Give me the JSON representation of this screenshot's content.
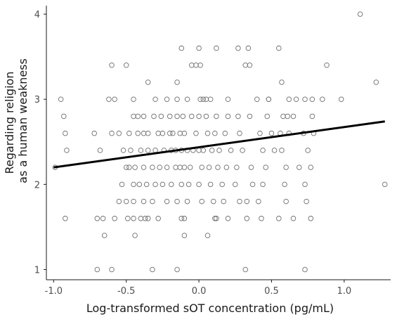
{
  "chart_data": {
    "type": "scatter",
    "xlabel": "Log-transformed sOT concentration (pg/mL)",
    "ylabel_lines": [
      "Regarding religion",
      "as a human weakness"
    ],
    "xlim": [
      -1.05,
      1.32
    ],
    "ylim": [
      0.88,
      4.1
    ],
    "x_ticks": [
      -1.0,
      -0.5,
      0.0,
      0.5,
      1.0
    ],
    "x_tick_labels": [
      "-1.0",
      "-0.5",
      "0.0",
      "0.5",
      "1.0"
    ],
    "y_ticks": [
      1,
      2,
      3,
      4
    ],
    "y_tick_labels": [
      "1",
      "2",
      "3",
      "4"
    ],
    "grid": false,
    "trend_line": {
      "x": [
        -1.0,
        1.28
      ],
      "y": [
        2.2,
        2.74
      ]
    },
    "points": {
      "x": [
        1.11,
        -0.95,
        -0.93,
        0.34,
        0.27,
        1.22,
        0.88,
        -0.12,
        0.12,
        0.0,
        0.55,
        0.57,
        0.01,
        -0.6,
        -0.5,
        -0.35,
        -0.15,
        0.32,
        -0.05,
        -0.02,
        0.35,
        0.48,
        0.62,
        0.05,
        -0.62,
        -0.58,
        -0.45,
        -0.3,
        -0.22,
        -0.15,
        -0.08,
        0.01,
        0.03,
        0.08,
        0.2,
        0.4,
        0.48,
        0.67,
        0.73,
        0.78,
        0.85,
        0.98,
        -0.92,
        -0.72,
        -0.6,
        -0.55,
        -0.48,
        -0.42,
        -0.38,
        -0.35,
        -0.28,
        -0.25,
        -0.2,
        -0.18,
        -0.13,
        -0.1,
        -0.02,
        0.06,
        0.11,
        0.18,
        0.28,
        0.42,
        0.5,
        0.56,
        0.62,
        0.72,
        0.79,
        -0.91,
        -0.68,
        -0.52,
        -0.47,
        -0.4,
        -0.35,
        -0.3,
        -0.24,
        -0.19,
        -0.16,
        -0.12,
        -0.08,
        -0.04,
        0.0,
        0.03,
        0.09,
        0.14,
        0.22,
        0.3,
        0.44,
        0.52,
        0.57,
        0.75,
        -0.5,
        -0.48,
        -0.44,
        -0.38,
        -0.32,
        -0.27,
        -0.22,
        -0.16,
        -0.13,
        -0.1,
        -0.06,
        0.02,
        0.07,
        0.13,
        0.19,
        0.26,
        0.36,
        0.46,
        0.6,
        0.69,
        0.77,
        -0.99,
        -0.45,
        -0.42,
        -0.38,
        -0.31,
        -0.26,
        -0.2,
        -0.15,
        -0.11,
        -0.05,
        0.0,
        0.05,
        0.12,
        0.2,
        0.27,
        0.35,
        0.47,
        0.58,
        0.61,
        0.65,
        0.78,
        -0.53,
        -0.45,
        -0.41,
        -0.36,
        -0.3,
        -0.25,
        -0.19,
        -0.12,
        -0.07,
        0.0,
        0.08,
        0.16,
        0.25,
        0.37,
        0.44,
        0.59,
        0.73,
        -0.55,
        -0.5,
        -0.45,
        -0.38,
        -0.32,
        -0.22,
        -0.15,
        -0.08,
        0.02,
        0.1,
        0.17,
        0.28,
        0.33,
        0.41,
        0.6,
        0.74,
        1.28,
        -0.58,
        -0.49,
        -0.4,
        -0.35,
        -0.28,
        -0.1,
        0.11,
        0.33,
        0.43,
        0.65,
        -0.92,
        -0.7,
        -0.66,
        -0.45,
        -0.37,
        -0.12,
        0.12,
        0.2,
        0.55,
        0.77,
        -0.65,
        -0.44,
        -0.1,
        0.06,
        -0.7,
        -0.6,
        -0.32,
        -0.15,
        0.32,
        0.73
      ],
      "y": [
        4.0,
        3.0,
        2.8,
        3.6,
        3.6,
        3.2,
        3.4,
        3.6,
        3.6,
        3.6,
        3.6,
        3.2,
        3.4,
        3.4,
        3.4,
        3.2,
        3.2,
        3.4,
        3.4,
        3.4,
        3.4,
        3.0,
        3.0,
        3.0,
        3.0,
        3.0,
        3.0,
        3.0,
        3.0,
        3.0,
        3.0,
        3.0,
        3.0,
        3.0,
        3.0,
        3.0,
        3.0,
        3.0,
        3.0,
        3.0,
        3.0,
        3.0,
        2.6,
        2.6,
        2.6,
        2.6,
        2.6,
        2.6,
        2.6,
        2.6,
        2.6,
        2.6,
        2.6,
        2.6,
        2.6,
        2.6,
        2.6,
        2.6,
        2.6,
        2.6,
        2.6,
        2.6,
        2.6,
        2.6,
        2.6,
        2.6,
        2.6,
        2.4,
        2.4,
        2.4,
        2.4,
        2.4,
        2.4,
        2.4,
        2.4,
        2.4,
        2.4,
        2.4,
        2.4,
        2.4,
        2.4,
        2.4,
        2.4,
        2.4,
        2.4,
        2.4,
        2.4,
        2.4,
        2.4,
        2.4,
        2.2,
        2.2,
        2.2,
        2.2,
        2.2,
        2.2,
        2.2,
        2.2,
        2.2,
        2.2,
        2.2,
        2.2,
        2.2,
        2.2,
        2.2,
        2.2,
        2.2,
        2.2,
        2.2,
        2.2,
        2.2,
        2.2,
        2.8,
        2.8,
        2.8,
        2.8,
        2.8,
        2.8,
        2.8,
        2.8,
        2.8,
        2.8,
        2.8,
        2.8,
        2.8,
        2.8,
        2.8,
        2.8,
        2.8,
        2.8,
        2.8,
        2.8,
        2.0,
        2.0,
        2.0,
        2.0,
        2.0,
        2.0,
        2.0,
        2.0,
        2.0,
        2.0,
        2.0,
        2.0,
        2.0,
        2.0,
        2.0,
        2.0,
        2.0,
        1.8,
        1.8,
        1.8,
        1.8,
        1.8,
        1.8,
        1.8,
        1.8,
        1.8,
        1.8,
        1.8,
        1.8,
        1.8,
        1.8,
        1.8,
        1.8,
        2.0,
        1.6,
        1.6,
        1.6,
        1.6,
        1.6,
        1.6,
        1.6,
        1.6,
        1.6,
        1.6,
        1.6,
        1.6,
        1.6,
        1.6,
        1.6,
        1.6,
        1.6,
        1.6,
        1.6,
        1.6,
        1.4,
        1.4,
        1.4,
        1.4,
        1.0,
        1.0,
        1.0,
        1.0,
        1.0,
        1.0
      ]
    }
  }
}
